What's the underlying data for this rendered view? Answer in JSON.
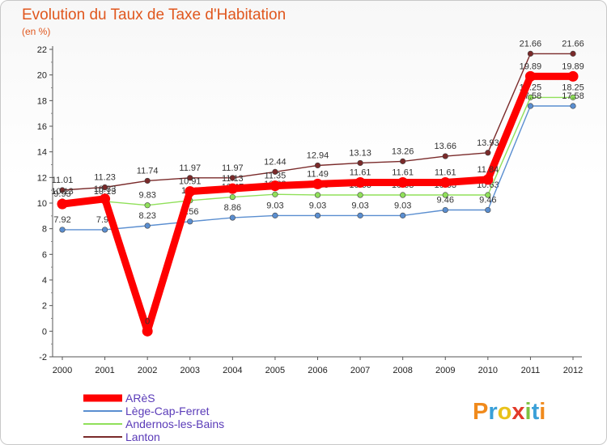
{
  "chart_data": {
    "type": "line",
    "title": "Evolution du Taux de Taxe d'Habitation",
    "subtitle": "(en %)",
    "xlabel": "",
    "ylabel": "",
    "ylim": [
      -2,
      22
    ],
    "yticks": [
      "-2",
      "0",
      "2",
      "4",
      "6",
      "8",
      "10",
      "12",
      "14",
      "16",
      "18",
      "20",
      "22"
    ],
    "categories": [
      "2000",
      "2001",
      "2002",
      "2003",
      "2004",
      "2005",
      "2006",
      "2007",
      "2008",
      "2009",
      "2010",
      "2011",
      "2012"
    ],
    "grid": false,
    "legend_position": "bottom-left",
    "series": [
      {
        "name": "Lanton",
        "color": "#7a2a2a",
        "values": [
          11.01,
          11.23,
          11.74,
          11.97,
          11.97,
          12.44,
          12.94,
          13.13,
          13.26,
          13.66,
          13.93,
          21.66,
          21.66
        ],
        "labels": [
          "11.01",
          "11.23",
          "11.74",
          "11.97",
          "11.97",
          "12.44",
          "12.94",
          "13.13",
          "13.26",
          "13.66",
          "13.93",
          "21.66",
          "21.66"
        ]
      },
      {
        "name": "Andernos-les-Bains",
        "color": "#90e05a",
        "values": [
          10.13,
          10.13,
          9.83,
          10.2,
          10.47,
          10.68,
          10.63,
          10.63,
          10.63,
          10.63,
          10.63,
          18.25,
          18.25
        ],
        "labels": [
          "10.13",
          "10.13",
          "9.83",
          "10.2",
          "10.47",
          "10.68",
          "10.63",
          "10.63",
          "10.63",
          "10.63",
          "10.63",
          "18.25",
          "18.25"
        ]
      },
      {
        "name": "Lège-Cap-Ferret",
        "color": "#5a8ed0",
        "values": [
          7.92,
          7.92,
          8.23,
          8.56,
          8.86,
          9.03,
          9.03,
          9.03,
          9.03,
          9.46,
          9.46,
          17.58,
          17.58
        ],
        "labels": [
          "7.92",
          "7.92",
          "8.23",
          "8.56",
          "8.86",
          "9.03",
          "9.03",
          "9.03",
          "9.03",
          "9.46",
          "9.46",
          "17.58",
          "17.58"
        ]
      },
      {
        "name": "ARèS",
        "color": "#ff0000",
        "values": [
          9.93,
          10.33,
          0,
          10.91,
          11.13,
          11.35,
          11.49,
          11.61,
          11.61,
          11.61,
          11.84,
          19.89,
          19.89
        ],
        "labels": [
          "9.93",
          "10.33",
          "0",
          "10.91",
          "11.13",
          "11.35",
          "11.49",
          "11.61",
          "11.61",
          "11.61",
          "11.84",
          "19.89",
          "19.89"
        ]
      }
    ],
    "legend": [
      {
        "name": "ARèS",
        "color": "#ff0000",
        "weight": "bold"
      },
      {
        "name": "Lège-Cap-Ferret",
        "color": "#5a8ed0",
        "weight": "normal"
      },
      {
        "name": "Andernos-les-Bains",
        "color": "#90e05a",
        "weight": "normal"
      },
      {
        "name": "Lanton",
        "color": "#7a2a2a",
        "weight": "normal"
      }
    ]
  },
  "logo": {
    "letters": [
      "P",
      "r",
      "o",
      "x",
      "i",
      "t",
      "i"
    ],
    "colors": [
      "#f08a1c",
      "#3aa0d8",
      "#e9c21a",
      "#e23a2a",
      "#7fc241",
      "#3aa0d8",
      "#f08a1c"
    ]
  }
}
